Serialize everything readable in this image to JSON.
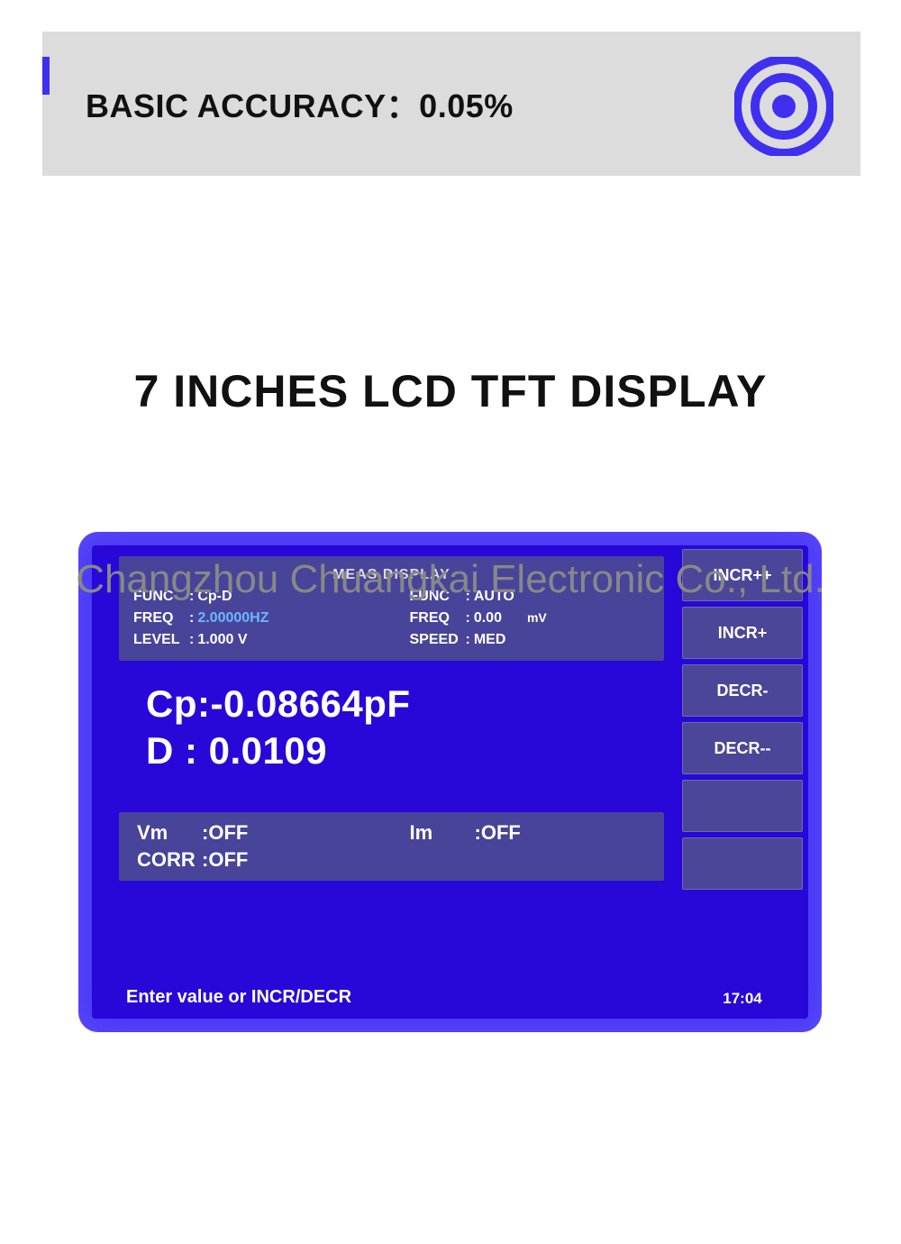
{
  "header": {
    "title": "BASIC ACCURACY：0.05%",
    "accent_color": "#3f30ef",
    "bg_color": "#dcdcdc",
    "icon_color": "#3f30ef"
  },
  "section_title": "7 INCHES LCD TFT DISPLAY",
  "watermark": "Changzhou Chuangkai Electronic Co., Ltd.",
  "display": {
    "outer_color": "#4736f6",
    "inner_color": "#2808d8",
    "panel_color": "#47449a",
    "highlight_color": "#6bb8ff",
    "panel_title": "MEAS DISPLAY",
    "left_params": [
      {
        "label": "FUNC",
        "value": "Cp-D",
        "highlight": false
      },
      {
        "label": "FREQ",
        "value": "2.00000HZ",
        "highlight": true
      },
      {
        "label": "LEVEL",
        "value": "1.000 V",
        "highlight": false
      }
    ],
    "right_params": [
      {
        "label": "FUNC",
        "value": "AUTO",
        "unit": ""
      },
      {
        "label": "FREQ",
        "value": "0.00",
        "unit": "mV"
      },
      {
        "label": "SPEED",
        "value": "MED",
        "unit": ""
      }
    ],
    "measurements": [
      "Cp:-0.08664pF",
      "D : 0.0109"
    ],
    "status": [
      {
        "label": "Vm",
        "value": "OFF"
      },
      {
        "label": "Im",
        "value": "OFF"
      },
      {
        "label": "CORR",
        "value": "OFF"
      }
    ],
    "prompt": "Enter value or INCR/DECR",
    "sidebar": {
      "buttons": [
        "INCR++",
        "INCR+",
        "DECR-",
        "DECR--",
        "",
        ""
      ],
      "time": "17:04"
    }
  }
}
